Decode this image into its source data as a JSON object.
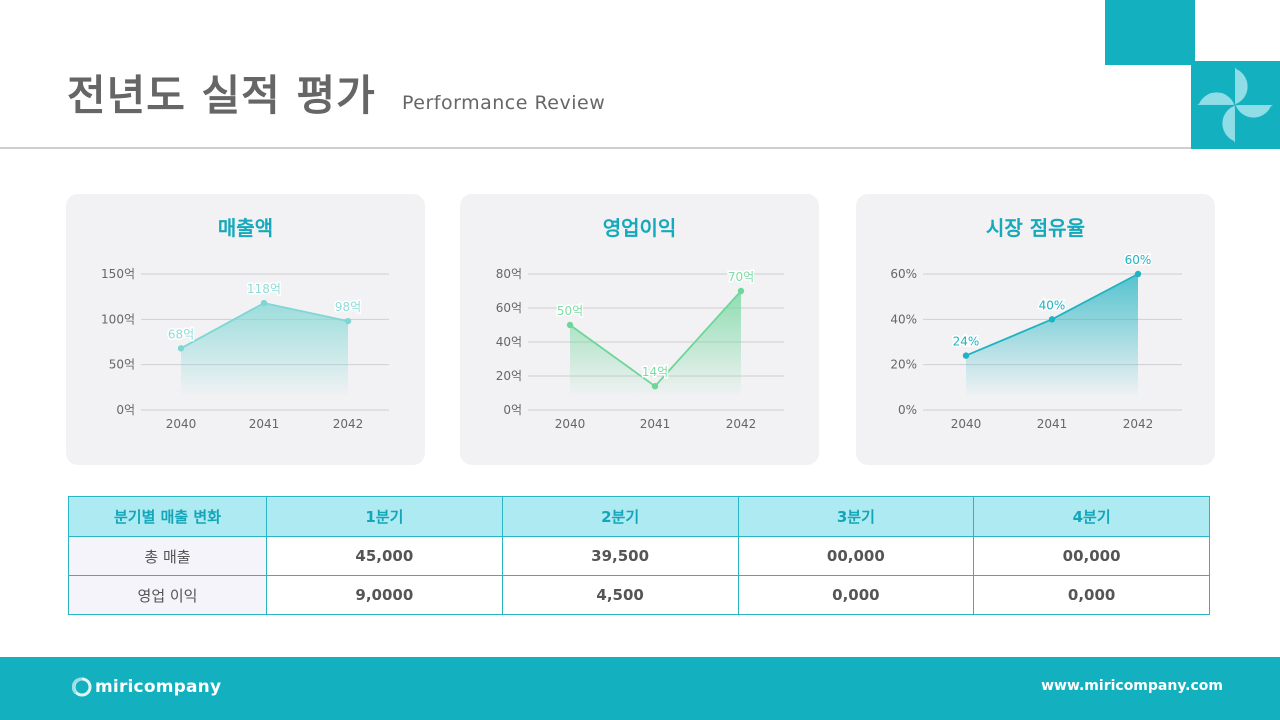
{
  "header": {
    "title": "전년도 실적 평가",
    "subtitle": "Performance Review"
  },
  "colors": {
    "accent": "#13b0bf",
    "title_text": "#666666",
    "card_bg": "#f2f2f4",
    "revenue_line": "#7fd6d4",
    "profit_line": "#6dd69a",
    "share_line": "#1fb3c2",
    "table_header_bg": "#aeeaf2"
  },
  "chart_data": [
    {
      "type": "area",
      "title": "매출액",
      "categories": [
        "2040",
        "2041",
        "2042"
      ],
      "values": [
        68,
        118,
        98
      ],
      "value_labels": [
        "68억",
        "118억",
        "98억"
      ],
      "yticks": [
        "0억",
        "50억",
        "100억",
        "150억"
      ],
      "ylim": [
        0,
        150
      ],
      "xlabel": "",
      "ylabel": "",
      "grid": true
    },
    {
      "type": "area",
      "title": "영업이익",
      "categories": [
        "2040",
        "2041",
        "2042"
      ],
      "values": [
        50,
        14,
        70
      ],
      "value_labels": [
        "50억",
        "14억",
        "70억"
      ],
      "yticks": [
        "0억",
        "20억",
        "40억",
        "60억",
        "80억"
      ],
      "ylim": [
        0,
        80
      ],
      "xlabel": "",
      "ylabel": "",
      "grid": true
    },
    {
      "type": "area",
      "title": "시장 점유율",
      "categories": [
        "2040",
        "2041",
        "2042"
      ],
      "values": [
        24,
        40,
        60
      ],
      "value_labels": [
        "24%",
        "40%",
        "60%"
      ],
      "yticks": [
        "0%",
        "20%",
        "40%",
        "60%"
      ],
      "ylim": [
        0,
        60
      ],
      "xlabel": "",
      "ylabel": "",
      "grid": true
    }
  ],
  "table": {
    "headers": [
      "분기별 매출 변화",
      "1분기",
      "2분기",
      "3분기",
      "4분기"
    ],
    "rows": [
      [
        "총 매출",
        "45,000",
        "39,500",
        "00,000",
        "00,000"
      ],
      [
        "영업 이익",
        "9,0000",
        "4,500",
        "0,000",
        "0,000"
      ]
    ]
  },
  "footer": {
    "brand": "miricompany",
    "url": "www.miricompany.com"
  }
}
